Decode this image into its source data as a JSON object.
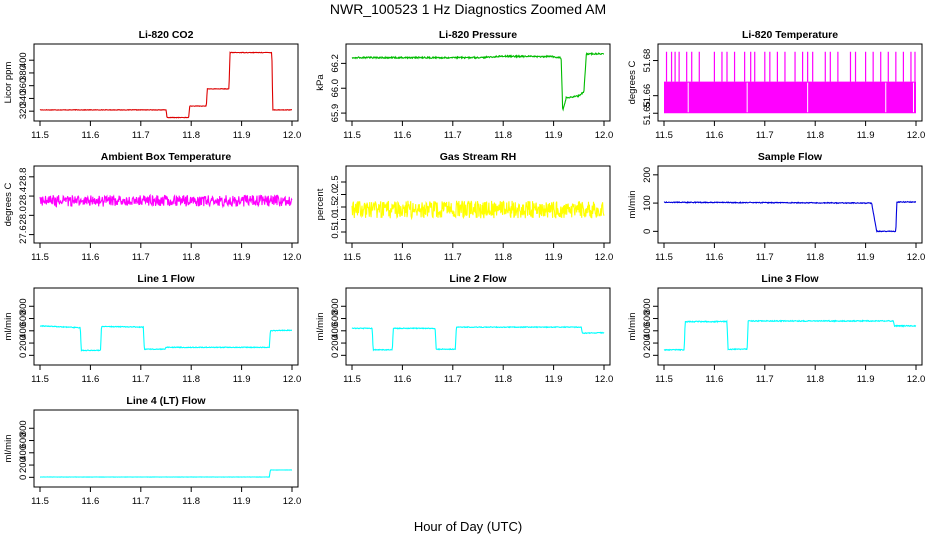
{
  "title": "NWR_100523  1 Hz Diagnostics Zoomed AM",
  "xlabel": "Hour of Day (UTC)",
  "chart_data": [
    {
      "type": "line",
      "title": "Li-820 CO2",
      "ylabel": "Licor ppm",
      "color": "#dd0000",
      "x_ticks": [
        "11.5",
        "11.6",
        "11.7",
        "11.8",
        "11.9",
        "12.0"
      ],
      "xlim": [
        11.5,
        12.0
      ],
      "y_ticks": [
        "320",
        "340",
        "360",
        "380",
        "400"
      ],
      "y_tick_values": [
        320,
        340,
        360,
        380,
        400
      ],
      "ylim": [
        314,
        416
      ],
      "noise": 0.4,
      "series": [
        {
          "x": [
            11.5,
            11.75,
            11.752,
            11.795,
            11.797,
            11.83,
            11.832,
            11.875,
            11.877,
            11.96,
            11.962,
            12.0
          ],
          "y": [
            322,
            322,
            310,
            310,
            328,
            328,
            355,
            355,
            412,
            412,
            322,
            322
          ]
        }
      ]
    },
    {
      "type": "line",
      "title": "Li-820 Pressure",
      "ylabel": "kPa",
      "color": "#00bb00",
      "x_ticks": [
        "11.5",
        "11.6",
        "11.7",
        "11.8",
        "11.9",
        "12.0"
      ],
      "xlim": [
        11.5,
        12.0
      ],
      "y_ticks": [
        "65.9",
        "66.0",
        "66.2"
      ],
      "y_tick_values": [
        65.87,
        66.0,
        66.13
      ],
      "ylim": [
        65.86,
        66.2
      ],
      "noise": 0.004,
      "series": [
        {
          "x": [
            11.5,
            11.75,
            11.8,
            11.9,
            11.915,
            11.918,
            11.925,
            11.95,
            11.96,
            11.965,
            11.98,
            12.0
          ],
          "y": [
            66.16,
            66.16,
            66.168,
            66.165,
            66.16,
            65.88,
            65.95,
            65.96,
            65.98,
            66.18,
            66.18,
            66.18
          ]
        }
      ]
    },
    {
      "type": "line",
      "title": "Li-820 Temperature",
      "ylabel": "degrees C",
      "color": "#ff00ff",
      "x_ticks": [
        "11.5",
        "11.6",
        "11.7",
        "11.8",
        "11.9",
        "12.0"
      ],
      "xlim": [
        11.5,
        12.0
      ],
      "y_ticks": [
        "51.65",
        "51.66",
        "51.68"
      ],
      "y_tick_values": [
        51.65,
        51.66,
        51.68
      ],
      "ylim": [
        51.649,
        51.686
      ],
      "band": [
        51.65,
        51.668
      ],
      "spike_top": 51.685,
      "spikes": [
        11.505,
        11.515,
        11.522,
        11.53,
        11.545,
        11.555,
        11.57,
        11.6,
        11.615,
        11.625,
        11.64,
        11.66,
        11.672,
        11.68,
        11.7,
        11.71,
        11.725,
        11.74,
        11.76,
        11.775,
        11.785,
        11.795,
        11.82,
        11.83,
        11.845,
        11.87,
        11.88,
        11.9,
        11.915,
        11.93,
        11.945,
        11.96,
        11.975,
        11.99,
        11.998
      ],
      "dips": [
        11.548,
        11.665,
        11.785,
        11.94,
        11.995
      ]
    },
    {
      "type": "line",
      "title": "Ambient Box Temperature",
      "ylabel": "degrees C",
      "color": "#ff00ff",
      "x_ticks": [
        "11.5",
        "11.6",
        "11.7",
        "11.8",
        "11.9",
        "12.0"
      ],
      "xlim": [
        11.5,
        12.0
      ],
      "y_ticks": [
        "27.6",
        "28.0",
        "28.4",
        "28.8"
      ],
      "y_tick_values": [
        27.6,
        28.0,
        28.4,
        28.8
      ],
      "ylim": [
        27.55,
        28.9
      ],
      "noise": 0.12,
      "series": [
        {
          "x": [
            11.5,
            12.0
          ],
          "y": [
            28.3,
            28.3
          ]
        }
      ]
    },
    {
      "type": "line",
      "title": "Gas Stream RH",
      "ylabel": "percent",
      "color": "#ffff00",
      "x_ticks": [
        "11.5",
        "11.6",
        "11.7",
        "11.8",
        "11.9",
        "12.0"
      ],
      "xlim": [
        11.5,
        12.0
      ],
      "y_ticks": [
        "0.5",
        "1.0",
        "1.5",
        "2.0",
        "2.5"
      ],
      "y_tick_values": [
        0.5,
        1.0,
        1.5,
        2.0,
        2.5
      ],
      "ylim": [
        0.3,
        2.9
      ],
      "noise": 0.35,
      "series": [
        {
          "x": [
            11.5,
            12.0
          ],
          "y": [
            1.4,
            1.4
          ]
        }
      ]
    },
    {
      "type": "line",
      "title": "Sample Flow",
      "ylabel": "ml/min",
      "color": "#0000dd",
      "x_ticks": [
        "11.5",
        "11.6",
        "11.7",
        "11.8",
        "11.9",
        "12.0"
      ],
      "xlim": [
        11.5,
        12.0
      ],
      "y_ticks": [
        "0",
        "100",
        "200"
      ],
      "y_tick_values": [
        0,
        100,
        200
      ],
      "ylim": [
        -20,
        210
      ],
      "noise": 1.5,
      "series": [
        {
          "x": [
            11.5,
            11.91,
            11.912,
            11.922,
            11.96,
            11.962,
            11.97,
            12.0
          ],
          "y": [
            103,
            100,
            100,
            0,
            0,
            104,
            104,
            104
          ]
        }
      ]
    },
    {
      "type": "line",
      "title": "Line 1 Flow",
      "ylabel": "ml/min",
      "color": "#00ffff",
      "x_ticks": [
        "11.5",
        "11.6",
        "11.7",
        "11.8",
        "11.9",
        "12.0"
      ],
      "xlim": [
        11.5,
        12.0
      ],
      "y_ticks": [
        "0",
        "200",
        "400",
        "600",
        "800"
      ],
      "y_tick_values": [
        0,
        200,
        400,
        600,
        800
      ],
      "ylim": [
        -60,
        1000
      ],
      "noise": 6,
      "series": [
        {
          "x": [
            11.5,
            11.58,
            11.582,
            11.62,
            11.622,
            11.705,
            11.707,
            11.748,
            11.75,
            11.955,
            11.957,
            12.0
          ],
          "y": [
            480,
            450,
            80,
            80,
            470,
            460,
            100,
            100,
            130,
            130,
            400,
            410
          ]
        }
      ]
    },
    {
      "type": "line",
      "title": "Line 2 Flow",
      "ylabel": "ml/min",
      "color": "#00ffff",
      "x_ticks": [
        "11.5",
        "11.6",
        "11.7",
        "11.8",
        "11.9",
        "12.0"
      ],
      "xlim": [
        11.5,
        12.0
      ],
      "y_ticks": [
        "0",
        "200",
        "400",
        "600",
        "800"
      ],
      "y_tick_values": [
        0,
        200,
        400,
        600,
        800
      ],
      "ylim": [
        -60,
        1000
      ],
      "noise": 6,
      "series": [
        {
          "x": [
            11.5,
            11.54,
            11.542,
            11.58,
            11.582,
            11.665,
            11.667,
            11.705,
            11.707,
            11.955,
            11.957,
            12.0
          ],
          "y": [
            440,
            440,
            90,
            90,
            440,
            440,
            100,
            100,
            460,
            460,
            360,
            370
          ]
        }
      ]
    },
    {
      "type": "line",
      "title": "Line 3 Flow",
      "ylabel": "ml/min",
      "color": "#00ffff",
      "x_ticks": [
        "11.5",
        "11.6",
        "11.7",
        "11.8",
        "11.9",
        "12.0"
      ],
      "xlim": [
        11.5,
        12.0
      ],
      "y_ticks": [
        "0",
        "200",
        "400",
        "600",
        "800"
      ],
      "y_tick_values": [
        0,
        200,
        400,
        600,
        800
      ],
      "ylim": [
        -60,
        1000
      ],
      "noise": 8,
      "series": [
        {
          "x": [
            11.5,
            11.54,
            11.542,
            11.625,
            11.627,
            11.665,
            11.667,
            11.955,
            11.957,
            12.0
          ],
          "y": [
            90,
            90,
            550,
            550,
            100,
            100,
            560,
            560,
            480,
            480
          ]
        }
      ]
    },
    {
      "type": "line",
      "title": "Line 4 (LT) Flow",
      "ylabel": "ml/min",
      "color": "#00ffff",
      "x_ticks": [
        "11.5",
        "11.6",
        "11.7",
        "11.8",
        "11.9",
        "12.0"
      ],
      "xlim": [
        11.5,
        12.0
      ],
      "y_ticks": [
        "0",
        "200",
        "400",
        "600",
        "800"
      ],
      "y_tick_values": [
        0,
        200,
        400,
        600,
        800
      ],
      "ylim": [
        -60,
        1000
      ],
      "noise": 1.5,
      "series": [
        {
          "x": [
            11.5,
            11.955,
            11.957,
            12.0
          ],
          "y": [
            5,
            5,
            120,
            120
          ]
        }
      ]
    }
  ]
}
